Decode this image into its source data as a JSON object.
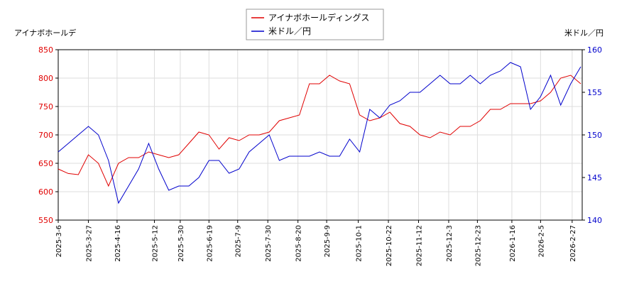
{
  "chart_data": {
    "type": "line",
    "y_label": "アイナボホールデ",
    "y2_label": "米ドル／円",
    "x": [
      "2025-3-6",
      "2025-3-13",
      "2025-3-20",
      "2025-3-27",
      "2025-4-3",
      "2025-4-10",
      "2025-4-17",
      "2025-4-24",
      "2025-5-1",
      "2025-5-8",
      "2025-5-15",
      "2025-5-22",
      "2025-5-29",
      "2025-6-5",
      "2025-6-12",
      "2025-6-19",
      "2025-6-26",
      "2025-7-3",
      "2025-7-10",
      "2025-7-17",
      "2025-7-24",
      "2025-7-31",
      "2025-8-7",
      "2025-8-14",
      "2025-8-21",
      "2025-8-28",
      "2025-9-4",
      "2025-9-11",
      "2025-9-18",
      "2025-9-25",
      "2025-10-2",
      "2025-10-9",
      "2025-10-16",
      "2025-10-23",
      "2025-10-30",
      "2025-11-6",
      "2025-11-13",
      "2025-11-20",
      "2025-11-27",
      "2025-12-4",
      "2025-12-11",
      "2025-12-18",
      "2025-12-25",
      "2026-1-1",
      "2026-1-8",
      "2026-1-15",
      "2026-1-22",
      "2026-1-29",
      "2026-2-5",
      "2026-2-12",
      "2026-2-19",
      "2026-2-26",
      "2026-3-5"
    ],
    "series": [
      {
        "name": "アイナボホールディングス",
        "color": "#e00000",
        "axis": "y",
        "values": [
          640,
          632,
          630,
          665,
          650,
          610,
          650,
          660,
          660,
          670,
          665,
          660,
          665,
          685,
          705,
          700,
          675,
          695,
          690,
          700,
          700,
          705,
          725,
          730,
          735,
          790,
          790,
          805,
          795,
          790,
          735,
          725,
          730,
          740,
          720,
          715,
          700,
          695,
          705,
          700,
          715,
          715,
          725,
          745,
          745,
          755,
          755,
          755,
          760,
          775,
          800,
          805,
          790
        ]
      },
      {
        "name": "米ドル／円",
        "color": "#0000cc",
        "axis": "y2",
        "values": [
          148,
          149,
          150,
          151,
          150,
          147,
          142,
          144,
          146,
          149,
          146,
          143.5,
          144,
          144,
          145,
          147,
          147,
          145.5,
          146,
          148,
          149,
          150,
          147,
          147.5,
          147.5,
          147.5,
          148,
          147.5,
          147.5,
          149.5,
          148,
          153,
          152,
          153.5,
          154,
          155,
          155,
          156,
          157,
          156,
          156,
          157,
          156,
          157,
          157.5,
          158.5,
          158,
          153,
          154.5,
          157,
          153.5,
          156,
          158
        ]
      }
    ],
    "xlim": [
      "2025-3-6",
      "2026-3-6"
    ],
    "xticks": [
      "2025-3-6",
      "2025-3-27",
      "2025-4-16",
      "2025-5-12",
      "2025-5-30",
      "2025-6-19",
      "2025-7-9",
      "2025-7-30",
      "2025-8-20",
      "2025-9-9",
      "2025-10-1",
      "2025-10-22",
      "2025-11-12",
      "2025-12-3",
      "2025-12-23",
      "2026-1-16",
      "2026-2-5",
      "2026-2-27"
    ],
    "ylim": [
      550,
      850
    ],
    "yticks": [
      550,
      600,
      650,
      700,
      750,
      800,
      850
    ],
    "y2lim": [
      140,
      160
    ],
    "y2ticks": [
      140,
      145,
      150,
      155,
      160
    ],
    "grid": true
  }
}
